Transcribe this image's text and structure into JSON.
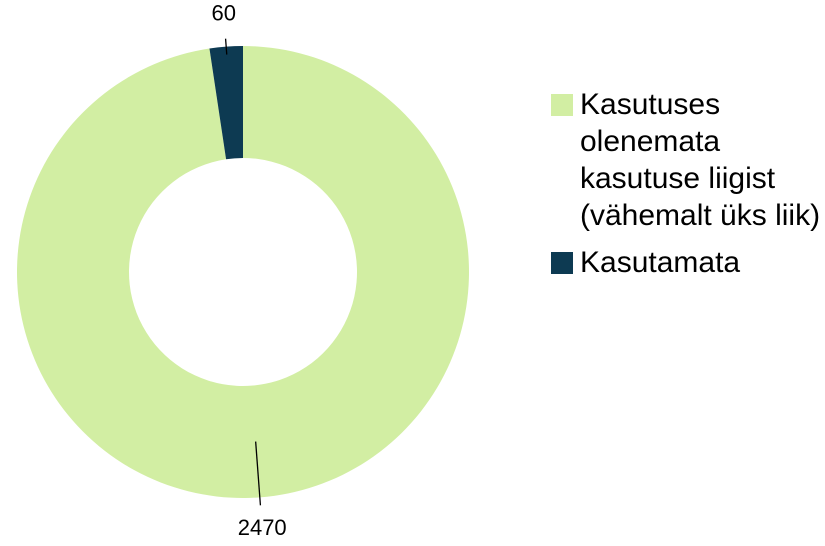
{
  "chart_data": {
    "type": "donut",
    "categories": [
      "Kasutuses olenemata kasutuse liigist (vähemalt üks liik)",
      "Kasutamata"
    ],
    "values": [
      2470,
      60
    ],
    "colors": [
      "#d2eea3",
      "#0d3a52"
    ],
    "legend": "right"
  }
}
